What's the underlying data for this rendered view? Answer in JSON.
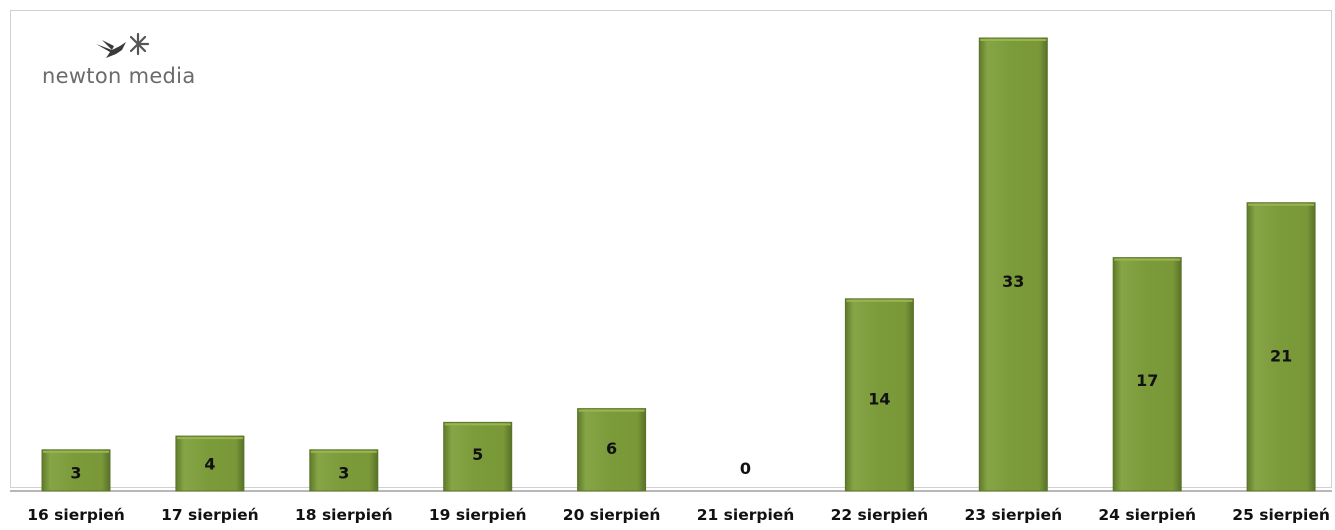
{
  "logo": {
    "text": "newton media",
    "icon": "hummingbird-icon"
  },
  "colors": {
    "bar_fill": "#7d9c3c",
    "bar_highlight": "#97b652",
    "bar_shadow": "#5b7428"
  },
  "chart_data": {
    "type": "bar",
    "categories": [
      "16 sierpień",
      "17 sierpień",
      "18 sierpień",
      "19 sierpień",
      "20 sierpień",
      "21 sierpień",
      "22 sierpień",
      "23 sierpień",
      "24 sierpień",
      "25 sierpień"
    ],
    "values": [
      3,
      4,
      3,
      5,
      6,
      0,
      14,
      33,
      17,
      21
    ],
    "data_labels": [
      "3",
      "4",
      "3",
      "5",
      "6",
      "0",
      "14",
      "33",
      "17",
      "21"
    ],
    "ylim": [
      0,
      33
    ],
    "grid": false,
    "legend": "none"
  }
}
